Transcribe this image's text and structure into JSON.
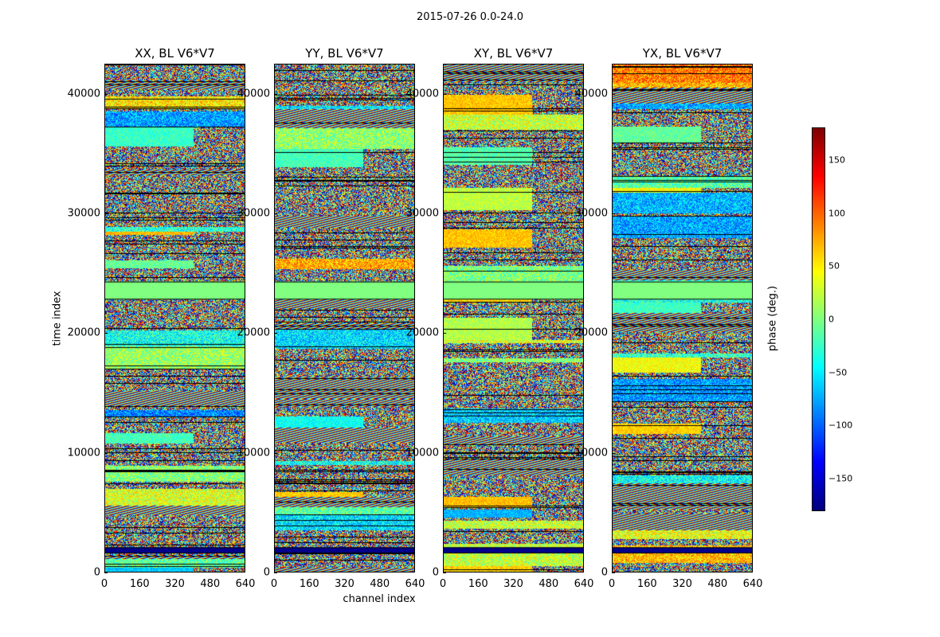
{
  "suptitle": "2015-07-26 0.0-24.0",
  "chart_data": {
    "type": "heatmap",
    "ylabel": "time index",
    "xlabel": "channel index",
    "colorbar_label": "phase (deg.)",
    "colorbar_ticks": [
      "150",
      "100",
      "50",
      "0",
      "−50",
      "−100",
      "−150"
    ],
    "colorbar_tick_values": [
      150,
      100,
      50,
      0,
      -50,
      -100,
      -150
    ],
    "colorbar_range": [
      -180,
      180
    ],
    "colormap": "jet",
    "xlim": [
      0,
      640
    ],
    "ylim": [
      0,
      42500
    ],
    "x_ticks": [
      "0",
      "160",
      "320",
      "480",
      "640"
    ],
    "x_tick_values": [
      0,
      160,
      320,
      480,
      640
    ],
    "y_ticks": [
      "0",
      "10000",
      "20000",
      "30000",
      "40000"
    ],
    "y_tick_values": [
      0,
      10000,
      20000,
      30000,
      40000
    ],
    "panels": [
      {
        "title": "XX, BL V6*V7"
      },
      {
        "title": "YY, BL V6*V7"
      },
      {
        "title": "XY, BL V6*V7"
      },
      {
        "title": "YX, BL V6*V7"
      }
    ],
    "flagged_time_bands": [
      [
        1600,
        2100
      ],
      [
        22800,
        24300
      ]
    ]
  }
}
